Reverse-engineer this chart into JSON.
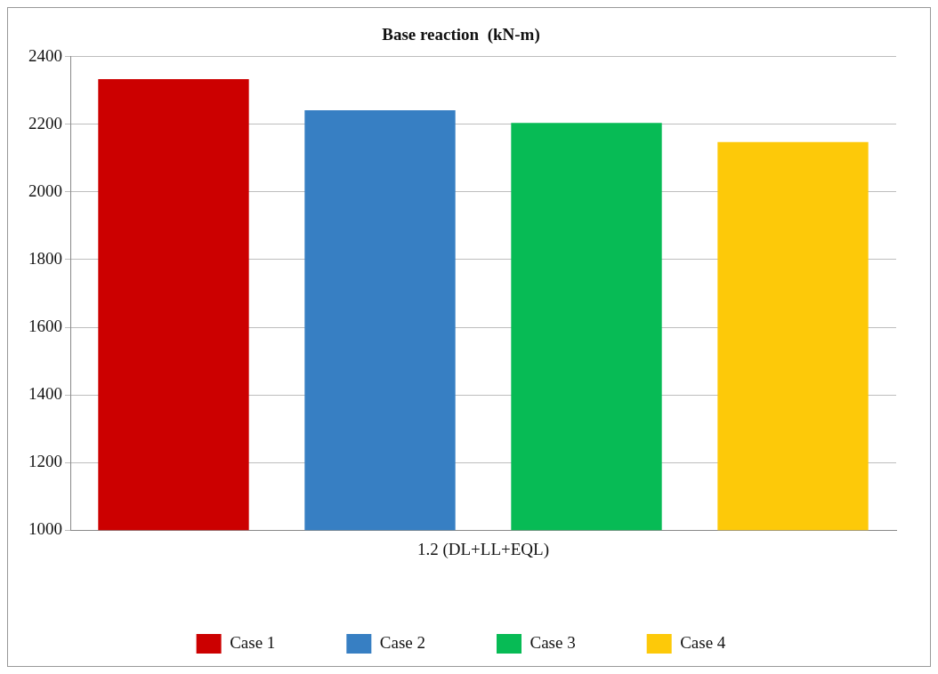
{
  "chart_data": {
    "type": "bar",
    "title": "Base reaction  (kN-m)",
    "categories": [
      "1.2 (DL+LL+EQL)"
    ],
    "series": [
      {
        "name": "Case 1",
        "color": "#cc0000",
        "values": [
          2334
        ]
      },
      {
        "name": "Case 2",
        "color": "#377fc3",
        "values": [
          2242
        ]
      },
      {
        "name": "Case 3",
        "color": "#07bb55",
        "values": [
          2204
        ]
      },
      {
        "name": "Case 4",
        "color": "#fdc909",
        "values": [
          2148
        ]
      }
    ],
    "ylim": [
      1000,
      2400
    ],
    "yticks": [
      1000,
      1200,
      1400,
      1600,
      1800,
      2000,
      2200,
      2400
    ],
    "grid": "y",
    "legend": "bottom"
  }
}
